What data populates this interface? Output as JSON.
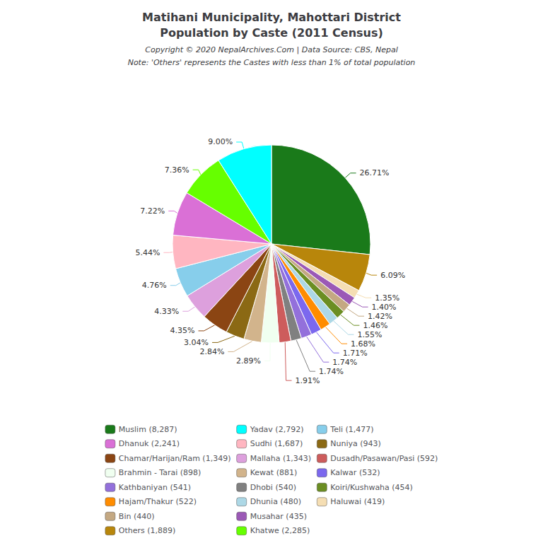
{
  "chart_data": {
    "type": "pie",
    "title": "Matihani Municipality, Mahottari District\nPopulation by Caste (2011 Census)",
    "annotations": [
      "Copyright © 2020 NepalArchives.Com | Data Source: CBS, Nepal",
      "Note: 'Others' represents the Castes with less than 1% of total population"
    ],
    "categories": [
      "Muslim (8,287)",
      "Others (1,889)",
      "Haluwai (419)",
      "Musahar (435)",
      "Bin (440)",
      "Koiri/Kushwaha (454)",
      "Dhunia (480)",
      "Hajam/Thakur (522)",
      "Kalwar (532)",
      "Kathbaniyan (541)",
      "Dhobi (540)",
      "Dusadh/Pasawan/Pasi (592)",
      "Brahmin - Tarai (898)",
      "Kewat (881)",
      "Nuniya (943)",
      "Chamar/Harijan/Ram (1,349)",
      "Mallaha (1,343)",
      "Teli (1,477)",
      "Sudhi (1,687)",
      "Dhanuk (2,241)",
      "Khatwe (2,285)",
      "Yadav (2,792)"
    ],
    "values": [
      26.71,
      6.09,
      1.35,
      1.4,
      1.42,
      1.46,
      1.55,
      1.68,
      1.71,
      1.74,
      1.74,
      1.91,
      2.89,
      2.84,
      3.04,
      4.35,
      4.33,
      4.76,
      5.44,
      7.22,
      7.36,
      9.0
    ],
    "value_labels": [
      "26.71%",
      "6.09%",
      "1.35%",
      "1.40%",
      "1.42%",
      "1.46%",
      "1.55%",
      "1.68%",
      "1.71%",
      "1.74%",
      "1.74%",
      "1.91%",
      "2.89%",
      "2.84%",
      "3.04%",
      "4.35%",
      "4.33%",
      "4.76%",
      "5.44%",
      "7.22%",
      "7.36%",
      "9.00%"
    ],
    "data_labels": true,
    "colors": [
      "#1a7a1a",
      "#B8860B",
      "#F5DEB3",
      "#9B59B6",
      "#C4A882",
      "#6B8E23",
      "#ADD8E6",
      "#FF8C00",
      "#7B68EE",
      "#9370DB",
      "#808080",
      "#CD5C5C",
      "#F0FFF0",
      "#D2B48C",
      "#8B6914",
      "#8B4513",
      "#DDA0DD",
      "#87CEEB",
      "#FFB6C1",
      "#DA70D6",
      "#66FF00",
      "#00FFFF"
    ],
    "legend_order": [
      "Muslim (8,287)",
      "Dhanuk (2,241)",
      "Chamar/Harijan/Ram (1,349)",
      "Brahmin - Tarai (898)",
      "Kathbaniyan (541)",
      "Hajam/Thakur (522)",
      "Bin (440)",
      "Others (1,889)",
      "Yadav (2,792)",
      "Sudhi (1,687)",
      "Mallaha (1,343)",
      "Kewat (881)",
      "Dhobi (540)",
      "Dhunia (480)",
      "Musahar (435)",
      "Khatwe (2,285)",
      "Teli (1,477)",
      "Nuniya (943)",
      "Dusadh/Pasawan/Pasi (592)",
      "Kalwar (532)",
      "Koiri/Kushwaha (454)",
      "Haluwai (419)"
    ]
  }
}
